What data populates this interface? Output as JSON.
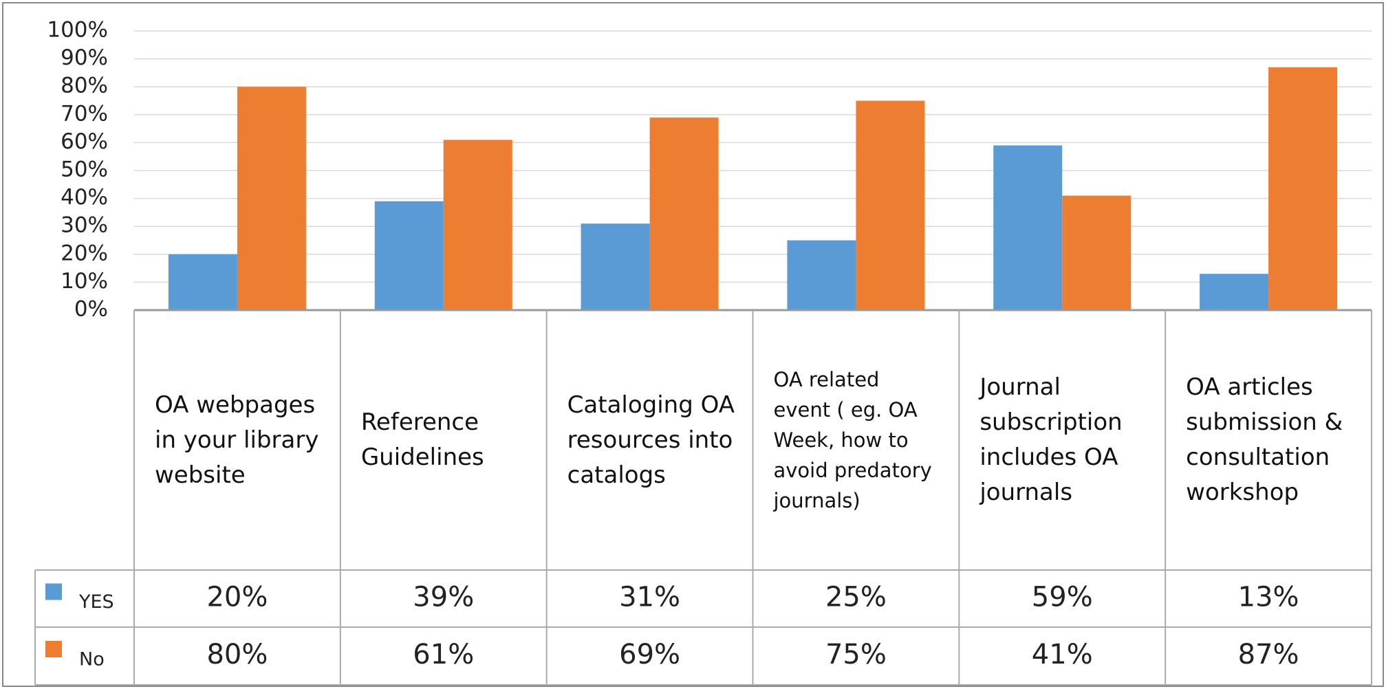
{
  "chart_data": {
    "type": "bar",
    "categories": [
      "OA webpages in your library website",
      "Reference Guidelines",
      "Cataloging OA resources into catalogs",
      "OA related event ( eg. OA Week, how to avoid predatory journals)",
      "Journal subscription includes OA journals",
      "OA articles submission & consultation workshop"
    ],
    "series": [
      {
        "name": "YES",
        "color": "#5b9bd5",
        "values": [
          20,
          39,
          31,
          25,
          59,
          13
        ],
        "value_labels": [
          "20%",
          "39%",
          "31%",
          "25%",
          "59%",
          "13%"
        ]
      },
      {
        "name": "No",
        "color": "#ed7d31",
        "values": [
          80,
          61,
          69,
          75,
          41,
          87
        ],
        "value_labels": [
          "80%",
          "61%",
          "69%",
          "75%",
          "41%",
          "87%"
        ]
      }
    ],
    "ylim": [
      0,
      100
    ],
    "yticks": [
      {
        "value": 0,
        "label": "0%"
      },
      {
        "value": 10,
        "label": "10%"
      },
      {
        "value": 20,
        "label": "20%"
      },
      {
        "value": 30,
        "label": "30%"
      },
      {
        "value": 40,
        "label": "40%"
      },
      {
        "value": 50,
        "label": "50%"
      },
      {
        "value": 60,
        "label": "60%"
      },
      {
        "value": 70,
        "label": "70%"
      },
      {
        "value": 80,
        "label": "80%"
      },
      {
        "value": 90,
        "label": "90%"
      },
      {
        "value": 100,
        "label": "100%"
      }
    ],
    "grid": true
  }
}
